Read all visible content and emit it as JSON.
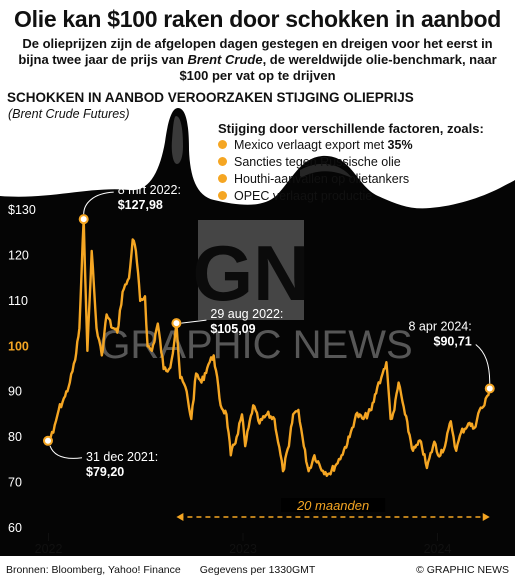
{
  "header": {
    "title": "Olie kan $100 raken door schokken in aanbod",
    "subtitle_part1": "De olieprijzen zijn de afgelopen dagen gestegen en dreigen voor het eerst in bijna twee jaar de prijs van ",
    "subtitle_italic": "Brent Crude",
    "subtitle_part2": ", de wereldwijde olie-benchmark, naar $100 per vat op te drijven"
  },
  "chart_heading": "SCHOKKEN IN AANBOD VEROORZAKEN STIJGING OLIEPRIJS",
  "chart_subheading": "(Brent Crude Futures)",
  "legend": {
    "title": "Stijging door verschillende factoren, zoals:",
    "items": [
      {
        "prefix": "Mexico verlaagt export met ",
        "bold": "35%"
      },
      {
        "prefix": "Sancties tegen Russische olie",
        "bold": ""
      },
      {
        "prefix": "Houthi-aanvallen op olietankers",
        "bold": ""
      },
      {
        "prefix": "OPEC verlaagt productie",
        "bold": ""
      }
    ]
  },
  "watermark": {
    "logo_text": "GN",
    "brand": "GRAPHIC NEWS"
  },
  "colors": {
    "line": "#f5a623",
    "background": "#000000",
    "accent_tick": "#f5a623"
  },
  "chart_data": {
    "type": "line",
    "title": "SCHOKKEN IN AANBOD VEROORZAKEN STIJGING OLIEPRIJS",
    "subtitle": "(Brent Crude Futures)",
    "xlabel": "",
    "ylabel": "",
    "ylim": [
      60,
      130
    ],
    "y_ticks": [
      {
        "value": 130,
        "label": "$130",
        "highlight": false
      },
      {
        "value": 120,
        "label": "120",
        "highlight": false
      },
      {
        "value": 110,
        "label": "110",
        "highlight": false
      },
      {
        "value": 100,
        "label": "100",
        "highlight": true
      },
      {
        "value": 90,
        "label": "90",
        "highlight": false
      },
      {
        "value": 80,
        "label": "80",
        "highlight": false
      },
      {
        "value": 70,
        "label": "70",
        "highlight": false
      },
      {
        "value": 60,
        "label": "60",
        "highlight": false
      }
    ],
    "x_ticks": [
      {
        "date": "2022-01-01",
        "label": "2022"
      },
      {
        "date": "2023-01-01",
        "label": "2023"
      },
      {
        "date": "2024-01-01",
        "label": "2024"
      }
    ],
    "xlim": [
      "2021-12-31",
      "2024-05-01"
    ],
    "grid": false,
    "series": [
      {
        "points": [
          [
            "2021-12-31",
            79.2
          ],
          [
            "2022-01-10",
            81
          ],
          [
            "2022-01-20",
            86
          ],
          [
            "2022-02-01",
            89
          ],
          [
            "2022-02-10",
            92
          ],
          [
            "2022-02-20",
            97
          ],
          [
            "2022-02-28",
            104
          ],
          [
            "2022-03-08",
            127.98
          ],
          [
            "2022-03-15",
            99
          ],
          [
            "2022-03-23",
            121
          ],
          [
            "2022-04-01",
            104
          ],
          [
            "2022-04-11",
            98
          ],
          [
            "2022-04-20",
            107
          ],
          [
            "2022-05-01",
            104
          ],
          [
            "2022-05-10",
            103
          ],
          [
            "2022-05-20",
            112
          ],
          [
            "2022-06-01",
            115
          ],
          [
            "2022-06-08",
            123.5
          ],
          [
            "2022-06-14",
            121
          ],
          [
            "2022-06-22",
            110
          ],
          [
            "2022-07-01",
            111
          ],
          [
            "2022-07-06",
            100
          ],
          [
            "2022-07-14",
            99
          ],
          [
            "2022-07-25",
            105
          ],
          [
            "2022-08-05",
            95
          ],
          [
            "2022-08-15",
            95
          ],
          [
            "2022-08-20",
            97
          ],
          [
            "2022-08-29",
            105.09
          ],
          [
            "2022-09-05",
            93
          ],
          [
            "2022-09-15",
            91
          ],
          [
            "2022-09-26",
            84
          ],
          [
            "2022-10-05",
            94
          ],
          [
            "2022-10-15",
            92
          ],
          [
            "2022-10-28",
            96
          ],
          [
            "2022-11-07",
            98
          ],
          [
            "2022-11-20",
            87
          ],
          [
            "2022-12-01",
            85
          ],
          [
            "2022-12-09",
            76
          ],
          [
            "2022-12-20",
            80
          ],
          [
            "2022-12-30",
            85
          ],
          [
            "2023-01-05",
            78
          ],
          [
            "2023-01-20",
            87
          ],
          [
            "2023-02-01",
            83
          ],
          [
            "2023-02-15",
            85
          ],
          [
            "2023-03-01",
            84
          ],
          [
            "2023-03-17",
            72.5
          ],
          [
            "2023-03-28",
            78
          ],
          [
            "2023-04-05",
            85
          ],
          [
            "2023-04-15",
            86
          ],
          [
            "2023-04-25",
            78
          ],
          [
            "2023-05-04",
            72.5
          ],
          [
            "2023-05-15",
            76
          ],
          [
            "2023-05-31",
            72.6
          ],
          [
            "2023-06-12",
            72
          ],
          [
            "2023-06-25",
            74
          ],
          [
            "2023-07-05",
            76
          ],
          [
            "2023-07-20",
            80
          ],
          [
            "2023-08-01",
            85
          ],
          [
            "2023-08-15",
            84
          ],
          [
            "2023-08-30",
            86
          ],
          [
            "2023-09-10",
            91
          ],
          [
            "2023-09-20",
            94
          ],
          [
            "2023-09-27",
            96.5
          ],
          [
            "2023-10-05",
            84
          ],
          [
            "2023-10-12",
            86
          ],
          [
            "2023-10-20",
            92
          ],
          [
            "2023-11-01",
            85
          ],
          [
            "2023-11-16",
            77
          ],
          [
            "2023-12-01",
            79
          ],
          [
            "2023-12-12",
            73.2
          ],
          [
            "2023-12-26",
            79
          ],
          [
            "2024-01-02",
            76
          ],
          [
            "2024-01-15",
            78
          ],
          [
            "2024-01-26",
            83.5
          ],
          [
            "2024-02-05",
            77
          ],
          [
            "2024-02-14",
            81
          ],
          [
            "2024-02-28",
            83
          ],
          [
            "2024-03-10",
            82
          ],
          [
            "2024-03-20",
            86
          ],
          [
            "2024-03-29",
            87
          ],
          [
            "2024-04-08",
            90.71
          ]
        ]
      }
    ],
    "annotations": [
      {
        "date": "2022-03-08",
        "value": 127.98,
        "date_label": "8 mrt 2022:",
        "value_label": "$127,98"
      },
      {
        "date": "2022-08-29",
        "value": 105.09,
        "date_label": "29 aug 2022:",
        "value_label": "$105,09"
      },
      {
        "date": "2021-12-31",
        "value": 79.2,
        "date_label": "31 dec 2021:",
        "value_label": "$79,20"
      },
      {
        "date": "2024-04-08",
        "value": 90.71,
        "date_label": "8 apr 2024:",
        "value_label": "$90,71"
      }
    ],
    "span_label": "20 maanden",
    "span_start": "2022-08-29",
    "span_end": "2024-04-08"
  },
  "footer": {
    "sources": "Bronnen: Bloomberg, Yahoo! Finance",
    "data_as_of": "Gegevens per 1330GMT",
    "copyright": "© GRAPHIC NEWS"
  }
}
